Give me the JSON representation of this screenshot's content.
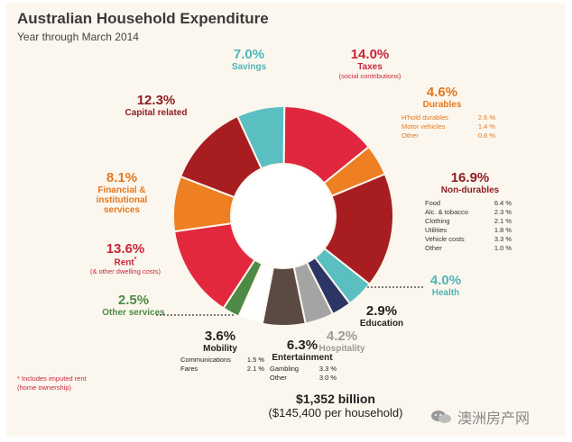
{
  "title": "Australian Household Expenditure",
  "subtitle": "Year through March 2014",
  "chart_data": {
    "type": "pie",
    "title": "Australian Household Expenditure",
    "subtitle": "Year through March 2014",
    "total": "$1,352 billion",
    "per_household": "($145,400 per household)",
    "slices": [
      {
        "name": "Taxes",
        "note": "(social contributions)",
        "value": 14.0,
        "label": "14.0%",
        "color": "#e0273f"
      },
      {
        "name": "Durables",
        "value": 4.6,
        "label": "4.6%",
        "color": "#ee7f22"
      },
      {
        "name": "Non-durables",
        "value": 16.9,
        "label": "16.9%",
        "color": "#a71d20"
      },
      {
        "name": "Health",
        "value": 4.0,
        "label": "4.0%",
        "color": "#5bbfc1"
      },
      {
        "name": "Education",
        "value": 2.9,
        "label": "2.9%",
        "color": "#2d3566"
      },
      {
        "name": "Hospitality",
        "value": 4.2,
        "label": "4.2%",
        "color": "#a4a4a4"
      },
      {
        "name": "Entertainment",
        "value": 6.3,
        "label": "6.3%",
        "color": "#5a4a42"
      },
      {
        "name": "Mobility",
        "value": 3.6,
        "label": "3.6%",
        "color": "#ffffff"
      },
      {
        "name": "Other services",
        "value": 2.5,
        "label": "2.5%",
        "color": "#4e8a45"
      },
      {
        "name": "Rent",
        "note": "(& other dwelling costs)",
        "value": 13.6,
        "label": "13.6%",
        "color": "#e3283e"
      },
      {
        "name": "Financial & institutional services",
        "value": 8.1,
        "label": "8.1%",
        "color": "#ee7f22"
      },
      {
        "name": "Capital related",
        "value": 12.3,
        "label": "12.3%",
        "color": "#a71d20"
      },
      {
        "name": "Savings",
        "value": 7.0,
        "label": "7.0%",
        "color": "#5bbfc1"
      }
    ],
    "breakdowns": {
      "durables": [
        {
          "item": "H'hold durables",
          "value": "2.6 %"
        },
        {
          "item": "Motor vehicles",
          "value": "1.4 %"
        },
        {
          "item": "Other",
          "value": "0.6 %"
        }
      ],
      "non_durables": [
        {
          "item": "Food",
          "value": "6.4 %"
        },
        {
          "item": "Alc. & tobacco",
          "value": "2.3 %"
        },
        {
          "item": "Clothing",
          "value": "2.1 %"
        },
        {
          "item": "Utilities",
          "value": "1.8 %"
        },
        {
          "item": "Vehicle costs",
          "value": "3.3 %"
        },
        {
          "item": "Other",
          "value": "1.0 %"
        }
      ],
      "mobility": [
        {
          "item": "Communications",
          "value": "1.5 %"
        },
        {
          "item": "Fares",
          "value": "2.1 %"
        }
      ],
      "entertainment": [
        {
          "item": "Gambling",
          "value": "3.3 %"
        },
        {
          "item": "Other",
          "value": "3.0 %"
        }
      ]
    }
  },
  "labels": {
    "savings_pct": "7.0%",
    "savings_name": "Savings",
    "taxes_pct": "14.0%",
    "taxes_name": "Taxes",
    "taxes_note": "(social contributions)",
    "durables_pct": "4.6%",
    "durables_name": "Durables",
    "nondur_pct": "16.9%",
    "nondur_name": "Non-durables",
    "health_pct": "4.0%",
    "health_name": "Health",
    "education_pct": "2.9%",
    "education_name": "Education",
    "hospitality_pct": "4.2%",
    "hospitality_name": "Hospitality",
    "entertainment_pct": "6.3%",
    "entertainment_name": "Entertainment",
    "mobility_pct": "3.6%",
    "mobility_name": "Mobility",
    "other_services_pct": "2.5%",
    "other_services_name": "Other services",
    "rent_pct": "13.6%",
    "rent_name": "Rent",
    "rent_sup": "*",
    "rent_note": "(& other dwelling costs)",
    "financial_pct": "8.1%",
    "financial_name_1": "Financial &",
    "financial_name_2": "institutional",
    "financial_name_3": "services",
    "capital_pct": "12.3%",
    "capital_name": "Capital related"
  },
  "footnote": {
    "line1": "* Includes imputed rent",
    "line2": "(home ownership)"
  },
  "total": {
    "amount": "$1,352 billion",
    "per_household": "($145,400 per household)"
  },
  "watermark": {
    "text": "澳洲房产网"
  },
  "colors": {
    "red": "#e0273f",
    "dark_red": "#a71d20",
    "orange": "#ee7f22",
    "teal": "#5bbfc1",
    "navy": "#2d3566",
    "grey": "#a4a4a4",
    "brown": "#5a4a42",
    "green": "#4e8a45",
    "label_red": "#c8253a",
    "label_orange": "#e4771f",
    "label_teal": "#4fb5b7",
    "label_dark": "#8e1d22"
  }
}
